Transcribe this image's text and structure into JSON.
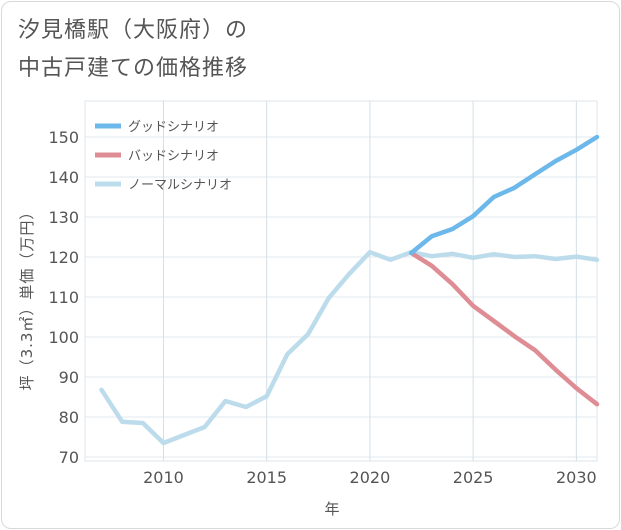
{
  "title": {
    "line1": "汐見橋駅（大阪府）の",
    "line2": "中古戸建ての価格推移"
  },
  "chart_data": {
    "type": "line",
    "title": "汐見橋駅（大阪府）の中古戸建ての価格推移",
    "xlabel": "年",
    "ylabel": "坪（3.3㎡）単価（万円）",
    "xlim": [
      2006.2,
      2031
    ],
    "ylim": [
      69,
      159
    ],
    "xticks": [
      2010,
      2015,
      2020,
      2025,
      2030
    ],
    "yticks": [
      70,
      80,
      90,
      100,
      110,
      120,
      130,
      140,
      150
    ],
    "grid": true,
    "legend_position": "top-left",
    "series": [
      {
        "name": "グッドシナリオ",
        "color": "#6cb8ea",
        "x": [
          2022,
          2023,
          2024,
          2025,
          2026,
          2027,
          2028,
          2029,
          2030,
          2031
        ],
        "y": [
          121,
          125.2,
          127,
          130.2,
          135,
          137.3,
          140.7,
          144,
          146.8,
          150
        ]
      },
      {
        "name": "バッドシナリオ",
        "color": "#df8d95",
        "x": [
          2022,
          2023,
          2024,
          2025,
          2026,
          2027,
          2028,
          2029,
          2030,
          2031
        ],
        "y": [
          121,
          117.8,
          113.2,
          107.8,
          104,
          100.2,
          96.7,
          91.8,
          87.2,
          83.2
        ]
      },
      {
        "name": "ノーマルシナリオ",
        "color": "#bcdcec",
        "x": [
          2007,
          2008,
          2009,
          2010,
          2011,
          2012,
          2013,
          2014,
          2015,
          2016,
          2017,
          2018,
          2019,
          2020,
          2021,
          2022,
          2023,
          2024,
          2025,
          2026,
          2027,
          2028,
          2029,
          2030,
          2031
        ],
        "y": [
          86.8,
          78.8,
          78.5,
          73.5,
          75.5,
          77.5,
          84,
          82.5,
          85.2,
          95.7,
          100.7,
          109.7,
          115.8,
          121.2,
          119.3,
          121.2,
          120.2,
          120.8,
          119.8,
          120.7,
          120,
          120.2,
          119.5,
          120.1,
          119.3
        ]
      }
    ]
  }
}
